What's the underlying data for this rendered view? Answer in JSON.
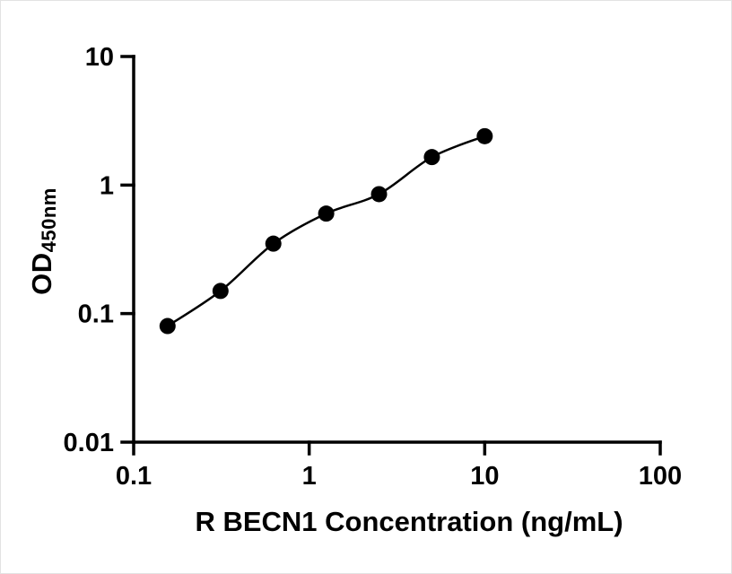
{
  "chart_data": {
    "type": "scatter",
    "title": "",
    "xlabel": "R BECN1 Concentration (ng/mL)",
    "ylabel": "OD",
    "ylabel_subscript": "450nm",
    "xscale": "log",
    "yscale": "log",
    "xlim": [
      0.1,
      100
    ],
    "ylim": [
      0.01,
      10
    ],
    "x_ticks": [
      0.1,
      1,
      10,
      100
    ],
    "x_tick_labels": [
      "0.1",
      "1",
      "10",
      "100"
    ],
    "y_ticks": [
      0.01,
      0.1,
      1,
      10
    ],
    "y_tick_labels": [
      "0.01",
      "0.1",
      "1",
      "10"
    ],
    "grid": false,
    "legend": null,
    "marker_color": "#000000",
    "line_color": "#000000",
    "axis_color": "#000000",
    "x": [
      0.156,
      0.3125,
      0.625,
      1.25,
      2.5,
      5,
      10
    ],
    "y": [
      0.08,
      0.15,
      0.35,
      0.6,
      0.85,
      1.65,
      2.4
    ]
  }
}
